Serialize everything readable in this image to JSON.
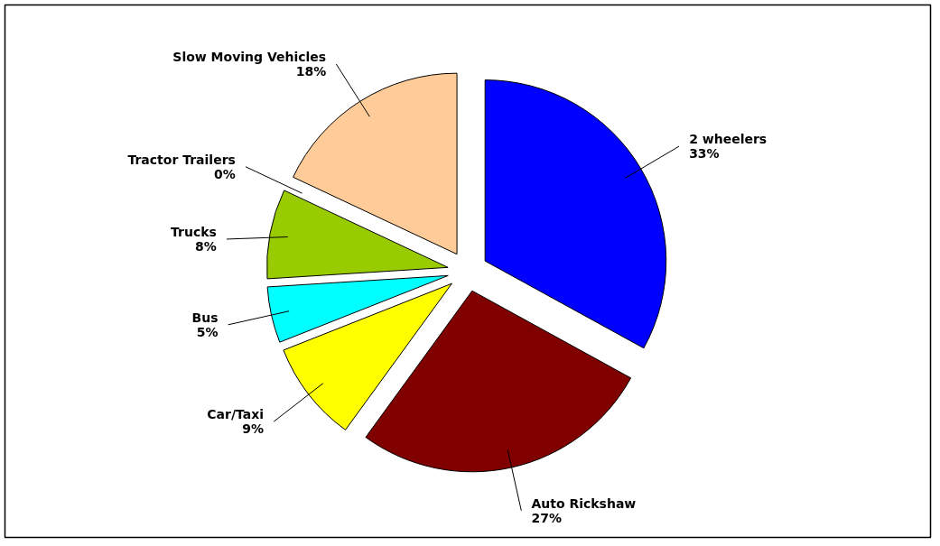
{
  "chart_data": {
    "type": "pie",
    "categories": [
      "2 wheelers",
      "Auto Rickshaw",
      "Car/Taxi",
      "Bus",
      "Trucks",
      "Tractor Trailers",
      "Slow Moving Vehicles"
    ],
    "values": [
      33,
      27,
      9,
      5,
      8,
      0,
      18
    ],
    "value_labels": [
      "33%",
      "27%",
      "9%",
      "5%",
      "8%",
      "0%",
      "18%"
    ],
    "colors": [
      "#0000ff",
      "#800000",
      "#ffff00",
      "#00ffff",
      "#99cc00",
      "#990099",
      "#ffcc99"
    ]
  }
}
